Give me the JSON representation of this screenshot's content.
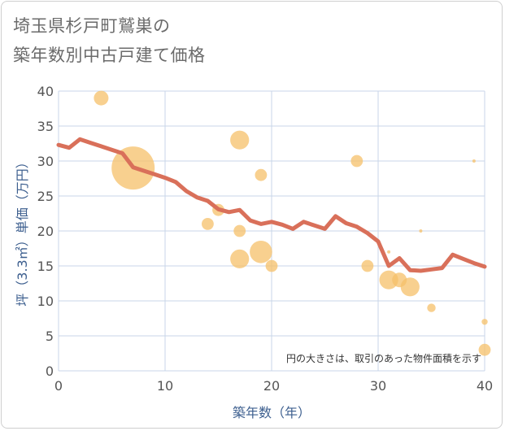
{
  "title_line1": "埼玉県杉戸町鷲巣の",
  "title_line2": "築年数別中古戸建て価格",
  "chart_data": {
    "type": "scatter",
    "xlabel": "築年数（年）",
    "ylabel": "坪（3.3㎡）単価（万円）",
    "note": "円の大きさは、取引のあった物件面積を示す",
    "xlim": [
      0,
      40
    ],
    "ylim": [
      0,
      40
    ],
    "xticks": [
      0,
      10,
      20,
      30,
      40
    ],
    "yticks": [
      0,
      5,
      10,
      15,
      20,
      25,
      30,
      35,
      40
    ],
    "grid": true,
    "colors": {
      "bubble": "#f5c06a",
      "line": "#d9705a",
      "grid": "#c9d6e8",
      "axis_text": "#3d5f8f"
    },
    "line_series": {
      "x": [
        0,
        1,
        2,
        3,
        4,
        5,
        6,
        7,
        8,
        9,
        10,
        11,
        12,
        13,
        14,
        15,
        16,
        17,
        18,
        19,
        20,
        21,
        22,
        23,
        24,
        25,
        26,
        27,
        28,
        29,
        30,
        31,
        32,
        33,
        34,
        35,
        36,
        37,
        38,
        39,
        40
      ],
      "y": [
        32.3,
        31.9,
        33.1,
        32.6,
        32.1,
        31.6,
        31.1,
        29.1,
        28.6,
        28.1,
        27.6,
        27.0,
        25.7,
        24.8,
        24.3,
        23.1,
        22.7,
        23.0,
        21.5,
        21.0,
        21.3,
        20.9,
        20.3,
        21.3,
        20.8,
        20.3,
        22.1,
        21.1,
        20.6,
        19.7,
        18.5,
        15.0,
        16.1,
        14.4,
        14.3,
        14.5,
        14.7,
        16.6,
        16.0,
        15.4,
        14.9
      ]
    },
    "bubbles": [
      {
        "x": 4,
        "y": 39,
        "size": 3
      },
      {
        "x": 7,
        "y": 29,
        "size": 26
      },
      {
        "x": 14,
        "y": 21,
        "size": 2
      },
      {
        "x": 15,
        "y": 23,
        "size": 2
      },
      {
        "x": 17,
        "y": 33,
        "size": 5
      },
      {
        "x": 17,
        "y": 20,
        "size": 2
      },
      {
        "x": 17,
        "y": 16,
        "size": 5
      },
      {
        "x": 19,
        "y": 28,
        "size": 2
      },
      {
        "x": 19,
        "y": 17,
        "size": 7
      },
      {
        "x": 20,
        "y": 15,
        "size": 2
      },
      {
        "x": 28,
        "y": 30,
        "size": 2
      },
      {
        "x": 29,
        "y": 15,
        "size": 2
      },
      {
        "x": 31,
        "y": 17,
        "size": 0.1
      },
      {
        "x": 31,
        "y": 13,
        "size": 5
      },
      {
        "x": 32,
        "y": 13,
        "size": 3
      },
      {
        "x": 33,
        "y": 12,
        "size": 5
      },
      {
        "x": 34,
        "y": 20,
        "size": 0.1
      },
      {
        "x": 35,
        "y": 9,
        "size": 1
      },
      {
        "x": 39,
        "y": 30,
        "size": 0.1
      },
      {
        "x": 40,
        "y": 7,
        "size": 0.5
      },
      {
        "x": 40,
        "y": 3,
        "size": 2
      }
    ]
  }
}
